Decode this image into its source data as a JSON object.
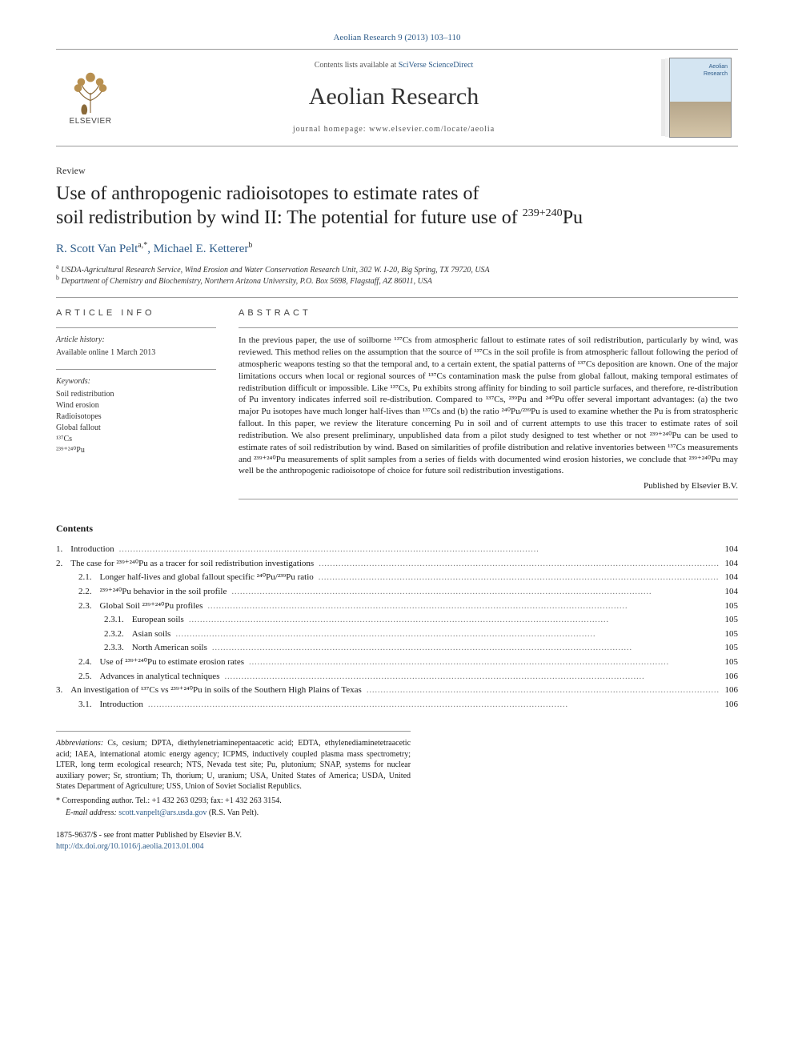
{
  "page_header": "Aeolian Research 9 (2013) 103–110",
  "masthead": {
    "contents_prefix": "Contents lists available at ",
    "contents_link": "SciVerse ScienceDirect",
    "journal": "Aeolian Research",
    "homepage_prefix": "journal homepage: ",
    "homepage_url": "www.elsevier.com/locate/aeolia",
    "publisher_word": "ELSEVIER",
    "cover_label": "Aeolian\nResearch"
  },
  "article_type": "Review",
  "title_line1": "Use of anthropogenic radioisotopes to estimate rates of",
  "title_line2_a": "soil redistribution by wind II: The potential for future use of ",
  "title_sup": "239+240",
  "title_line2_b": "Pu",
  "authors": {
    "a1_name": "R. Scott Van Pelt",
    "a1_sup": "a,",
    "a1_star": "*",
    "a2_name": "Michael E. Ketterer",
    "a2_sup": "b"
  },
  "affiliations": {
    "a": "USDA-Agricultural Research Service, Wind Erosion and Water Conservation Research Unit, 302 W. I-20, Big Spring, TX 79720, USA",
    "b": "Department of Chemistry and Biochemistry, Northern Arizona University, P.O. Box 5698, Flagstaff, AZ 86011, USA"
  },
  "info_heading": "ARTICLE INFO",
  "abstract_heading": "ABSTRACT",
  "history_label": "Article history:",
  "history_line": "Available online 1 March 2013",
  "keywords_label": "Keywords:",
  "keywords": [
    "Soil redistribution",
    "Wind erosion",
    "Radioisotopes",
    "Global fallout",
    "¹³⁷Cs",
    "²³⁹⁺²⁴⁰Pu"
  ],
  "abstract": "In the previous paper, the use of soilborne ¹³⁷Cs from atmospheric fallout to estimate rates of soil redistribution, particularly by wind, was reviewed. This method relies on the assumption that the source of ¹³⁷Cs in the soil profile is from atmospheric fallout following the period of atmospheric weapons testing so that the temporal and, to a certain extent, the spatial patterns of ¹³⁷Cs deposition are known. One of the major limitations occurs when local or regional sources of ¹³⁷Cs contamination mask the pulse from global fallout, making temporal estimates of redistribution difficult or impossible. Like ¹³⁷Cs, Pu exhibits strong affinity for binding to soil particle surfaces, and therefore, re-distribution of Pu inventory indicates inferred soil re-distribution. Compared to ¹³⁷Cs, ²³⁹Pu and ²⁴⁰Pu offer several important advantages: (a) the two major Pu isotopes have much longer half-lives than ¹³⁷Cs and (b) the ratio ²⁴⁰Pu/²³⁹Pu is used to examine whether the Pu is from stratospheric fallout. In this paper, we review the literature concerning Pu in soil and of current attempts to use this tracer to estimate rates of soil redistribution. We also present preliminary, unpublished data from a pilot study designed to test whether or not ²³⁹⁺²⁴⁰Pu can be used to estimate rates of soil redistribution by wind. Based on similarities of profile distribution and relative inventories between ¹³⁷Cs measurements and ²³⁹⁺²⁴⁰Pu measurements of split samples from a series of fields with documented wind erosion histories, we conclude that ²³⁹⁺²⁴⁰Pu may well be the anthropogenic radioisotope of choice for future soil redistribution investigations.",
  "publisher_line": "Published by Elsevier B.V.",
  "contents_heading": "Contents",
  "toc": [
    {
      "level": 1,
      "num": "1.",
      "text": "Introduction",
      "page": "104"
    },
    {
      "level": 1,
      "num": "2.",
      "text": "The case for ²³⁹⁺²⁴⁰Pu as a tracer for soil redistribution investigations",
      "page": "104"
    },
    {
      "level": 2,
      "num": "2.1.",
      "text": "Longer half-lives and global fallout specific ²⁴⁰Pu/²³⁹Pu ratio",
      "page": "104"
    },
    {
      "level": 2,
      "num": "2.2.",
      "text": "²³⁹⁺²⁴⁰Pu behavior in the soil profile",
      "page": "104"
    },
    {
      "level": 2,
      "num": "2.3.",
      "text": "Global Soil ²³⁹⁺²⁴⁰Pu profiles",
      "page": "105"
    },
    {
      "level": 3,
      "num": "2.3.1.",
      "text": "European soils",
      "page": "105"
    },
    {
      "level": 3,
      "num": "2.3.2.",
      "text": "Asian soils",
      "page": "105"
    },
    {
      "level": 3,
      "num": "2.3.3.",
      "text": "North American soils",
      "page": "105"
    },
    {
      "level": 2,
      "num": "2.4.",
      "text": "Use of ²³⁹⁺²⁴⁰Pu to estimate erosion rates",
      "page": "105"
    },
    {
      "level": 2,
      "num": "2.5.",
      "text": "Advances in analytical techniques",
      "page": "106"
    },
    {
      "level": 1,
      "num": "3.",
      "text": "An investigation of ¹³⁷Cs vs ²³⁹⁺²⁴⁰Pu in soils of the Southern High Plains of Texas",
      "page": "106"
    },
    {
      "level": 2,
      "num": "3.1.",
      "text": "Introduction",
      "page": "106"
    }
  ],
  "footnotes": {
    "abbrev_label": "Abbreviations:",
    "abbrev_text": " Cs, cesium; DPTA, diethylenetriaminepentaacetic acid; EDTA, ethylenediaminetetraacetic acid; IAEA, international atomic energy agency; ICPMS, inductively coupled plasma mass spectrometry; LTER, long term ecological research; NTS, Nevada test site; Pu, plutonium; SNAP, systems for nuclear auxiliary power; Sr, strontium; Th, thorium; U, uranium; USA, United States of America; USDA, United States Department of Agriculture; USS, Union of Soviet Socialist Republics.",
    "corr_label": "* Corresponding author. Tel.: +1 432 263 0293; fax: +1 432 263 3154.",
    "email_label": "E-mail address:",
    "email": "scott.vanpelt@ars.usda.gov",
    "email_suffix": " (R.S. Van Pelt)."
  },
  "bottom": {
    "issn_line": "1875-9637/$ - see front matter Published by Elsevier B.V.",
    "doi": "http://dx.doi.org/10.1016/j.aeolia.2013.01.004"
  },
  "colors": {
    "link": "#2e5c8a",
    "text": "#1a1a1a",
    "rule": "#999999",
    "bg": "#ffffff"
  }
}
